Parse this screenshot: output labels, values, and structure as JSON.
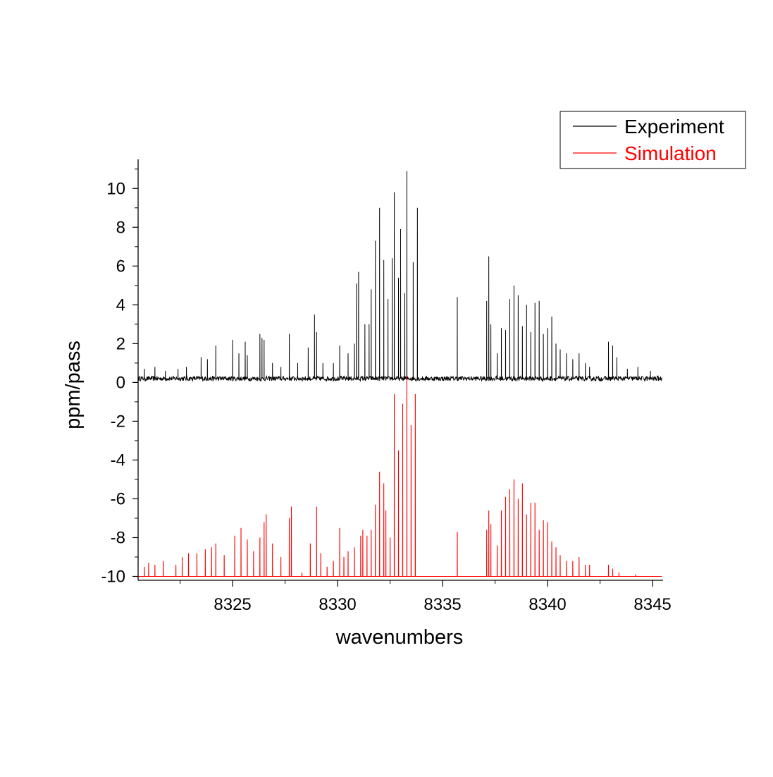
{
  "chart_data": {
    "type": "line",
    "title": "",
    "xlabel": "wavenumbers",
    "ylabel": "ppm/pass",
    "xlim": [
      8320.5,
      8345.5
    ],
    "ylim": [
      -10.2,
      11.5
    ],
    "x_ticks": [
      8325,
      8330,
      8335,
      8340,
      8345
    ],
    "y_ticks": [
      -10,
      -8,
      -6,
      -4,
      -2,
      0,
      2,
      4,
      6,
      8,
      10
    ],
    "grid": false,
    "legend": {
      "position": "top-right",
      "entries": [
        "Experiment",
        "Simulation"
      ]
    },
    "series": [
      {
        "name": "Experiment",
        "color": "#000000",
        "baseline": 0.2,
        "noise": 0.12,
        "peaks": [
          [
            8320.8,
            0.7
          ],
          [
            8321.3,
            0.8
          ],
          [
            8321.8,
            0.6
          ],
          [
            8322.4,
            0.7
          ],
          [
            8322.8,
            0.8
          ],
          [
            8323.5,
            1.3
          ],
          [
            8323.8,
            1.2
          ],
          [
            8324.2,
            1.9
          ],
          [
            8325.0,
            2.2
          ],
          [
            8325.3,
            1.5
          ],
          [
            8325.6,
            2.1
          ],
          [
            8325.7,
            1.4
          ],
          [
            8326.3,
            2.5
          ],
          [
            8326.4,
            2.3
          ],
          [
            8326.5,
            2.2
          ],
          [
            8326.9,
            1.0
          ],
          [
            8327.3,
            0.8
          ],
          [
            8327.7,
            2.5
          ],
          [
            8328.1,
            1.0
          ],
          [
            8328.6,
            1.8
          ],
          [
            8328.9,
            3.5
          ],
          [
            8329.0,
            2.6
          ],
          [
            8329.3,
            1.0
          ],
          [
            8329.8,
            1.0
          ],
          [
            8330.1,
            1.9
          ],
          [
            8330.5,
            1.5
          ],
          [
            8330.8,
            2.0
          ],
          [
            8330.9,
            5.1
          ],
          [
            8331.0,
            5.7
          ],
          [
            8331.3,
            3.0
          ],
          [
            8331.5,
            3.0
          ],
          [
            8331.6,
            4.8
          ],
          [
            8331.8,
            7.3
          ],
          [
            8332.0,
            9.0
          ],
          [
            8332.2,
            6.3
          ],
          [
            8332.4,
            4.3
          ],
          [
            8332.6,
            6.4
          ],
          [
            8332.7,
            9.8
          ],
          [
            8332.9,
            5.4
          ],
          [
            8333.0,
            7.9
          ],
          [
            8333.2,
            4.6
          ],
          [
            8333.3,
            10.9
          ],
          [
            8333.6,
            6.2
          ],
          [
            8333.8,
            9.0
          ],
          [
            8335.7,
            4.4
          ],
          [
            8337.1,
            4.2
          ],
          [
            8337.2,
            6.5
          ],
          [
            8337.3,
            3.0
          ],
          [
            8337.6,
            1.5
          ],
          [
            8337.8,
            2.8
          ],
          [
            8338.0,
            2.7
          ],
          [
            8338.2,
            4.3
          ],
          [
            8338.4,
            5.0
          ],
          [
            8338.6,
            4.5
          ],
          [
            8338.8,
            2.9
          ],
          [
            8339.0,
            4.0
          ],
          [
            8339.2,
            2.6
          ],
          [
            8339.4,
            4.1
          ],
          [
            8339.6,
            4.2
          ],
          [
            8339.8,
            2.5
          ],
          [
            8340.0,
            2.8
          ],
          [
            8340.2,
            3.4
          ],
          [
            8340.4,
            2.0
          ],
          [
            8340.6,
            1.7
          ],
          [
            8340.9,
            1.5
          ],
          [
            8341.2,
            1.2
          ],
          [
            8341.5,
            1.5
          ],
          [
            8341.8,
            1.0
          ],
          [
            8342.0,
            0.8
          ],
          [
            8342.9,
            2.1
          ],
          [
            8343.1,
            1.9
          ],
          [
            8343.3,
            1.3
          ],
          [
            8343.8,
            0.7
          ],
          [
            8344.3,
            0.8
          ],
          [
            8344.9,
            0.6
          ]
        ]
      },
      {
        "name": "Simulation",
        "color": "#ff0000",
        "baseline": -10.0,
        "peaks": [
          [
            8320.8,
            -9.5
          ],
          [
            8321.0,
            -9.3
          ],
          [
            8321.3,
            -9.4
          ],
          [
            8321.7,
            -9.2
          ],
          [
            8322.3,
            -9.4
          ],
          [
            8322.6,
            -9.0
          ],
          [
            8322.9,
            -8.8
          ],
          [
            8323.3,
            -8.8
          ],
          [
            8323.7,
            -8.6
          ],
          [
            8324.0,
            -8.5
          ],
          [
            8324.2,
            -8.3
          ],
          [
            8324.6,
            -8.9
          ],
          [
            8325.1,
            -7.9
          ],
          [
            8325.4,
            -7.5
          ],
          [
            8325.7,
            -8.1
          ],
          [
            8326.0,
            -8.7
          ],
          [
            8326.3,
            -8.0
          ],
          [
            8326.5,
            -7.2
          ],
          [
            8326.6,
            -6.8
          ],
          [
            8326.9,
            -8.3
          ],
          [
            8327.3,
            -9.0
          ],
          [
            8327.7,
            -7.0
          ],
          [
            8327.8,
            -6.4
          ],
          [
            8328.3,
            -9.8
          ],
          [
            8328.7,
            -8.3
          ],
          [
            8329.0,
            -6.4
          ],
          [
            8329.2,
            -8.8
          ],
          [
            8329.5,
            -9.5
          ],
          [
            8329.8,
            -9.2
          ],
          [
            8330.1,
            -7.5
          ],
          [
            8330.3,
            -9.0
          ],
          [
            8330.5,
            -8.7
          ],
          [
            8330.8,
            -8.5
          ],
          [
            8331.1,
            -7.9
          ],
          [
            8331.2,
            -7.6
          ],
          [
            8331.4,
            -7.9
          ],
          [
            8331.6,
            -7.6
          ],
          [
            8331.8,
            -6.3
          ],
          [
            8332.0,
            -4.6
          ],
          [
            8332.2,
            -5.2
          ],
          [
            8332.3,
            -6.6
          ],
          [
            8332.5,
            -8.0
          ],
          [
            8332.7,
            -0.6
          ],
          [
            8332.9,
            -3.5
          ],
          [
            8333.1,
            -1.1
          ],
          [
            8333.3,
            0.3
          ],
          [
            8333.5,
            -2.2
          ],
          [
            8333.7,
            -0.6
          ],
          [
            8335.7,
            -7.7
          ],
          [
            8337.1,
            -7.6
          ],
          [
            8337.2,
            -6.6
          ],
          [
            8337.3,
            -7.3
          ],
          [
            8337.6,
            -8.4
          ],
          [
            8337.8,
            -6.6
          ],
          [
            8338.0,
            -5.9
          ],
          [
            8338.2,
            -5.5
          ],
          [
            8338.4,
            -5.0
          ],
          [
            8338.6,
            -6.0
          ],
          [
            8338.8,
            -5.2
          ],
          [
            8339.0,
            -6.8
          ],
          [
            8339.2,
            -6.2
          ],
          [
            8339.4,
            -6.2
          ],
          [
            8339.6,
            -7.6
          ],
          [
            8339.8,
            -7.1
          ],
          [
            8340.0,
            -7.2
          ],
          [
            8340.2,
            -8.2
          ],
          [
            8340.4,
            -8.5
          ],
          [
            8340.6,
            -8.9
          ],
          [
            8340.9,
            -9.2
          ],
          [
            8341.2,
            -9.2
          ],
          [
            8341.5,
            -9.0
          ],
          [
            8341.8,
            -9.4
          ],
          [
            8342.0,
            -9.4
          ],
          [
            8342.9,
            -9.4
          ],
          [
            8343.1,
            -9.6
          ],
          [
            8343.4,
            -9.8
          ],
          [
            8344.2,
            -9.9
          ]
        ]
      }
    ]
  }
}
